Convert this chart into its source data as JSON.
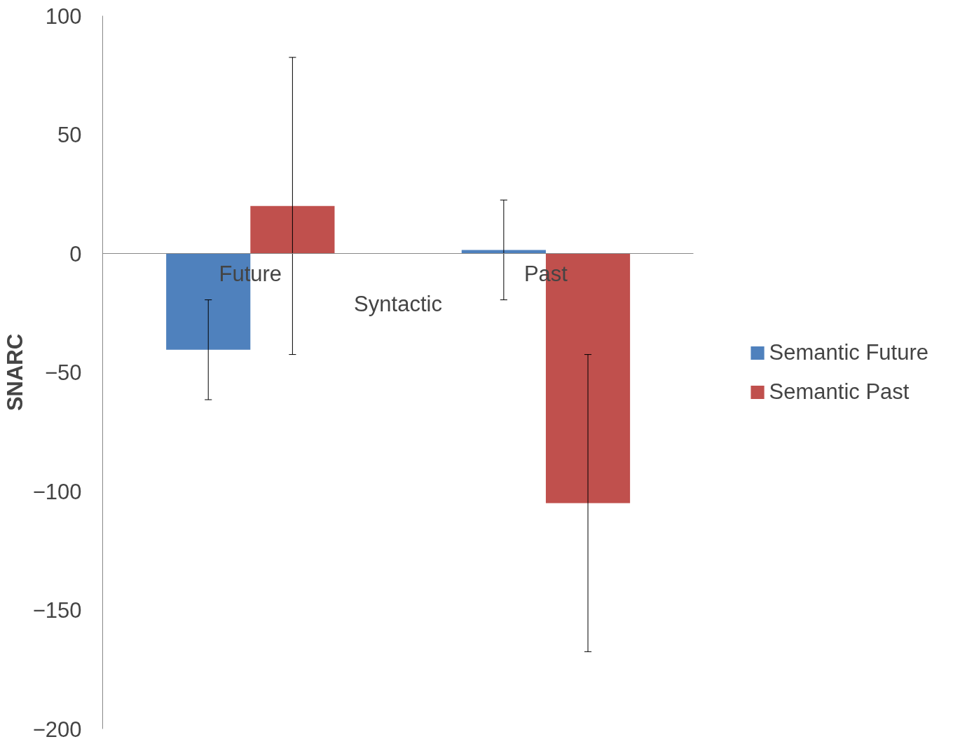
{
  "chart_data": {
    "type": "bar",
    "categories": [
      "Future",
      "Past"
    ],
    "xlabel": "Syntactic",
    "ylabel": "SNARC",
    "ylim": [
      -200,
      100
    ],
    "yticks": [
      -200,
      -150,
      -100,
      -50,
      0,
      50,
      100
    ],
    "grid": false,
    "legend": "right",
    "series": [
      {
        "name": "Semantic Future",
        "color": "#4f81bd",
        "values": [
          -40.5,
          1.5
        ],
        "errors": [
          21,
          21
        ]
      },
      {
        "name": "Semantic Past",
        "color": "#c0504d",
        "values": [
          20,
          -105
        ],
        "errors": [
          62.5,
          62.5
        ]
      }
    ]
  }
}
